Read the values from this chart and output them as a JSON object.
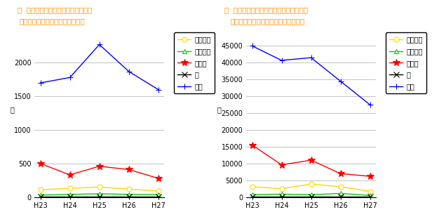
{
  "left_title": "集団健康教育開催回数（熊本県）",
  "right_title": "集団健康教育参加延べ人数（熊本県）",
  "left_ylabel": "回",
  "right_ylabel": "人",
  "x_labels": [
    "H23",
    "H24",
    "H25",
    "H26",
    "H27"
  ],
  "legend_labels": [
    "歯周疾患",
    "骨粗鬆症",
    "病態別",
    "薬",
    "一般"
  ],
  "left_data": {
    "歯周疾患": [
      110,
      130,
      150,
      120,
      90
    ],
    "骨粗鬆症": [
      30,
      40,
      50,
      40,
      35
    ],
    "病態別": [
      500,
      330,
      460,
      410,
      280
    ],
    "薬": [
      10,
      10,
      10,
      10,
      10
    ],
    "一般": [
      1700,
      1780,
      2270,
      1870,
      1600
    ]
  },
  "right_data": {
    "歯周疾患": [
      3100,
      2500,
      3900,
      3100,
      1700
    ],
    "骨粗鬆症": [
      700,
      900,
      700,
      1100,
      500
    ],
    "病態別": [
      15500,
      9600,
      11000,
      7000,
      6200
    ],
    "薬": [
      200,
      200,
      200,
      200,
      200
    ],
    "一般": [
      45000,
      40700,
      41500,
      34500,
      27500
    ]
  },
  "colors": {
    "歯周疾患": "#FFD700",
    "骨粗鬆症": "#00CC00",
    "病態別": "#FF0000",
    "薬": "#000000",
    "一般": "#0000FF"
  },
  "markers": {
    "歯周疾患": "o",
    "骨粗鬆症": "^",
    "病態別": "*",
    "薬": "x",
    "一般": "+"
  },
  "left_ylim": [
    0,
    2500
  ],
  "left_yticks": [
    0,
    500,
    1000,
    1500,
    2000
  ],
  "right_ylim": [
    0,
    50000
  ],
  "right_yticks": [
    0,
    5000,
    10000,
    15000,
    20000,
    25000,
    30000,
    35000,
    40000,
    45000
  ],
  "background_color": "#FFFFFF",
  "grid_color": "#AAAAAA",
  "title_color": "#FF8C00"
}
